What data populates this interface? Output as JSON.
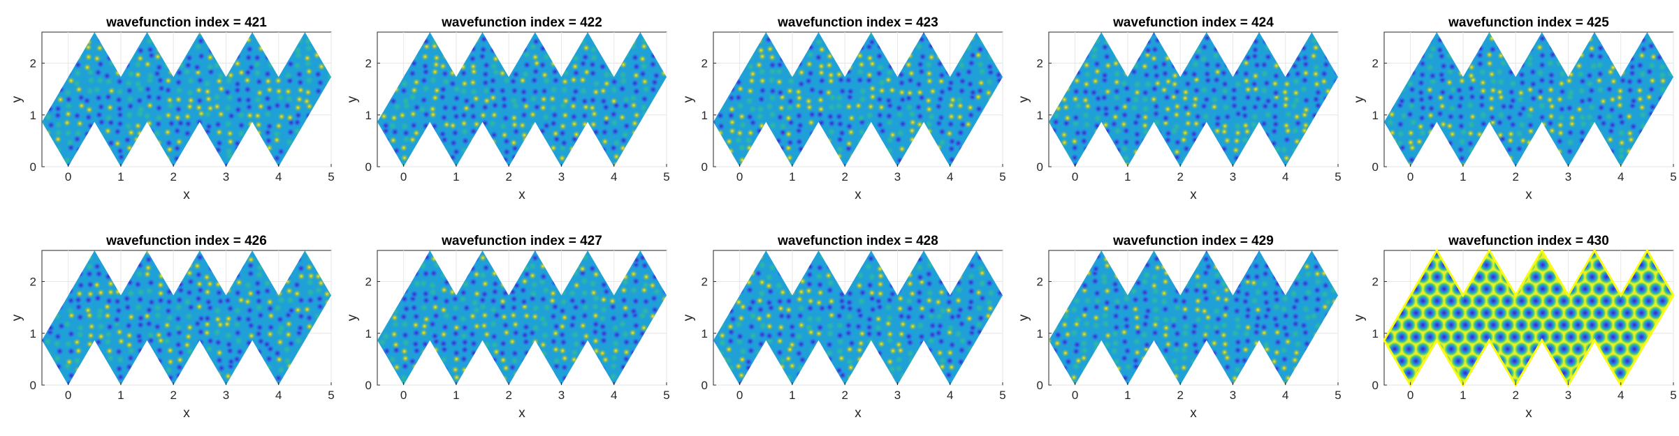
{
  "figure": {
    "layout": "2 rows x 5 columns",
    "colormap": "parula",
    "colormap_stops": [
      "#3e26a8",
      "#2d6ef2",
      "#18a6d6",
      "#33c08e",
      "#bfbc26",
      "#f9fb15"
    ]
  },
  "chart_data": [
    {
      "type": "heatmap",
      "title": "wavefunction index = 421",
      "xlabel": "x",
      "ylabel": "y",
      "xlim": [
        -0.5,
        5
      ],
      "ylim": [
        0,
        2.6
      ],
      "xticks": [
        "0",
        "1",
        "2",
        "3",
        "4",
        "5"
      ],
      "yticks": [
        "0",
        "1",
        "2"
      ],
      "grid": true
    },
    {
      "type": "heatmap",
      "title": "wavefunction index = 422",
      "xlabel": "x",
      "ylabel": "y",
      "xlim": [
        -0.5,
        5
      ],
      "ylim": [
        0,
        2.6
      ],
      "xticks": [
        "0",
        "1",
        "2",
        "3",
        "4",
        "5"
      ],
      "yticks": [
        "0",
        "1",
        "2"
      ],
      "grid": true
    },
    {
      "type": "heatmap",
      "title": "wavefunction index = 423",
      "xlabel": "x",
      "ylabel": "y",
      "xlim": [
        -0.5,
        5
      ],
      "ylim": [
        0,
        2.6
      ],
      "xticks": [
        "0",
        "1",
        "2",
        "3",
        "4",
        "5"
      ],
      "yticks": [
        "0",
        "1",
        "2"
      ],
      "grid": true
    },
    {
      "type": "heatmap",
      "title": "wavefunction index = 424",
      "xlabel": "x",
      "ylabel": "y",
      "xlim": [
        -0.5,
        5
      ],
      "ylim": [
        0,
        2.6
      ],
      "xticks": [
        "0",
        "1",
        "2",
        "3",
        "4",
        "5"
      ],
      "yticks": [
        "0",
        "1",
        "2"
      ],
      "grid": true
    },
    {
      "type": "heatmap",
      "title": "wavefunction index = 425",
      "xlabel": "x",
      "ylabel": "y",
      "xlim": [
        -0.5,
        5
      ],
      "ylim": [
        0,
        2.6
      ],
      "xticks": [
        "0",
        "1",
        "2",
        "3",
        "4",
        "5"
      ],
      "yticks": [
        "0",
        "1",
        "2"
      ],
      "grid": true
    },
    {
      "type": "heatmap",
      "title": "wavefunction index = 426",
      "xlabel": "x",
      "ylabel": "y",
      "xlim": [
        -0.5,
        5
      ],
      "ylim": [
        0,
        2.6
      ],
      "xticks": [
        "0",
        "1",
        "2",
        "3",
        "4",
        "5"
      ],
      "yticks": [
        "0",
        "1",
        "2"
      ],
      "grid": true
    },
    {
      "type": "heatmap",
      "title": "wavefunction index = 427",
      "xlabel": "x",
      "ylabel": "y",
      "xlim": [
        -0.5,
        5
      ],
      "ylim": [
        0,
        2.6
      ],
      "xticks": [
        "0",
        "1",
        "2",
        "3",
        "4",
        "5"
      ],
      "yticks": [
        "0",
        "1",
        "2"
      ],
      "grid": true
    },
    {
      "type": "heatmap",
      "title": "wavefunction index = 428",
      "xlabel": "x",
      "ylabel": "y",
      "xlim": [
        -0.5,
        5
      ],
      "ylim": [
        0,
        2.6
      ],
      "xticks": [
        "0",
        "1",
        "2",
        "3",
        "4",
        "5"
      ],
      "yticks": [
        "0",
        "1",
        "2"
      ],
      "grid": true
    },
    {
      "type": "heatmap",
      "title": "wavefunction index = 429",
      "xlabel": "x",
      "ylabel": "y",
      "xlim": [
        -0.5,
        5
      ],
      "ylim": [
        0,
        2.6
      ],
      "xticks": [
        "0",
        "1",
        "2",
        "3",
        "4",
        "5"
      ],
      "yticks": [
        "0",
        "1",
        "2"
      ],
      "grid": true
    },
    {
      "type": "heatmap",
      "title": "wavefunction index = 430",
      "xlabel": "x",
      "ylabel": "y",
      "xlim": [
        -0.5,
        5
      ],
      "ylim": [
        0,
        2.6
      ],
      "xticks": [
        "0",
        "1",
        "2",
        "3",
        "4",
        "5"
      ],
      "yticks": [
        "0",
        "1",
        "2"
      ],
      "grid": true
    }
  ]
}
